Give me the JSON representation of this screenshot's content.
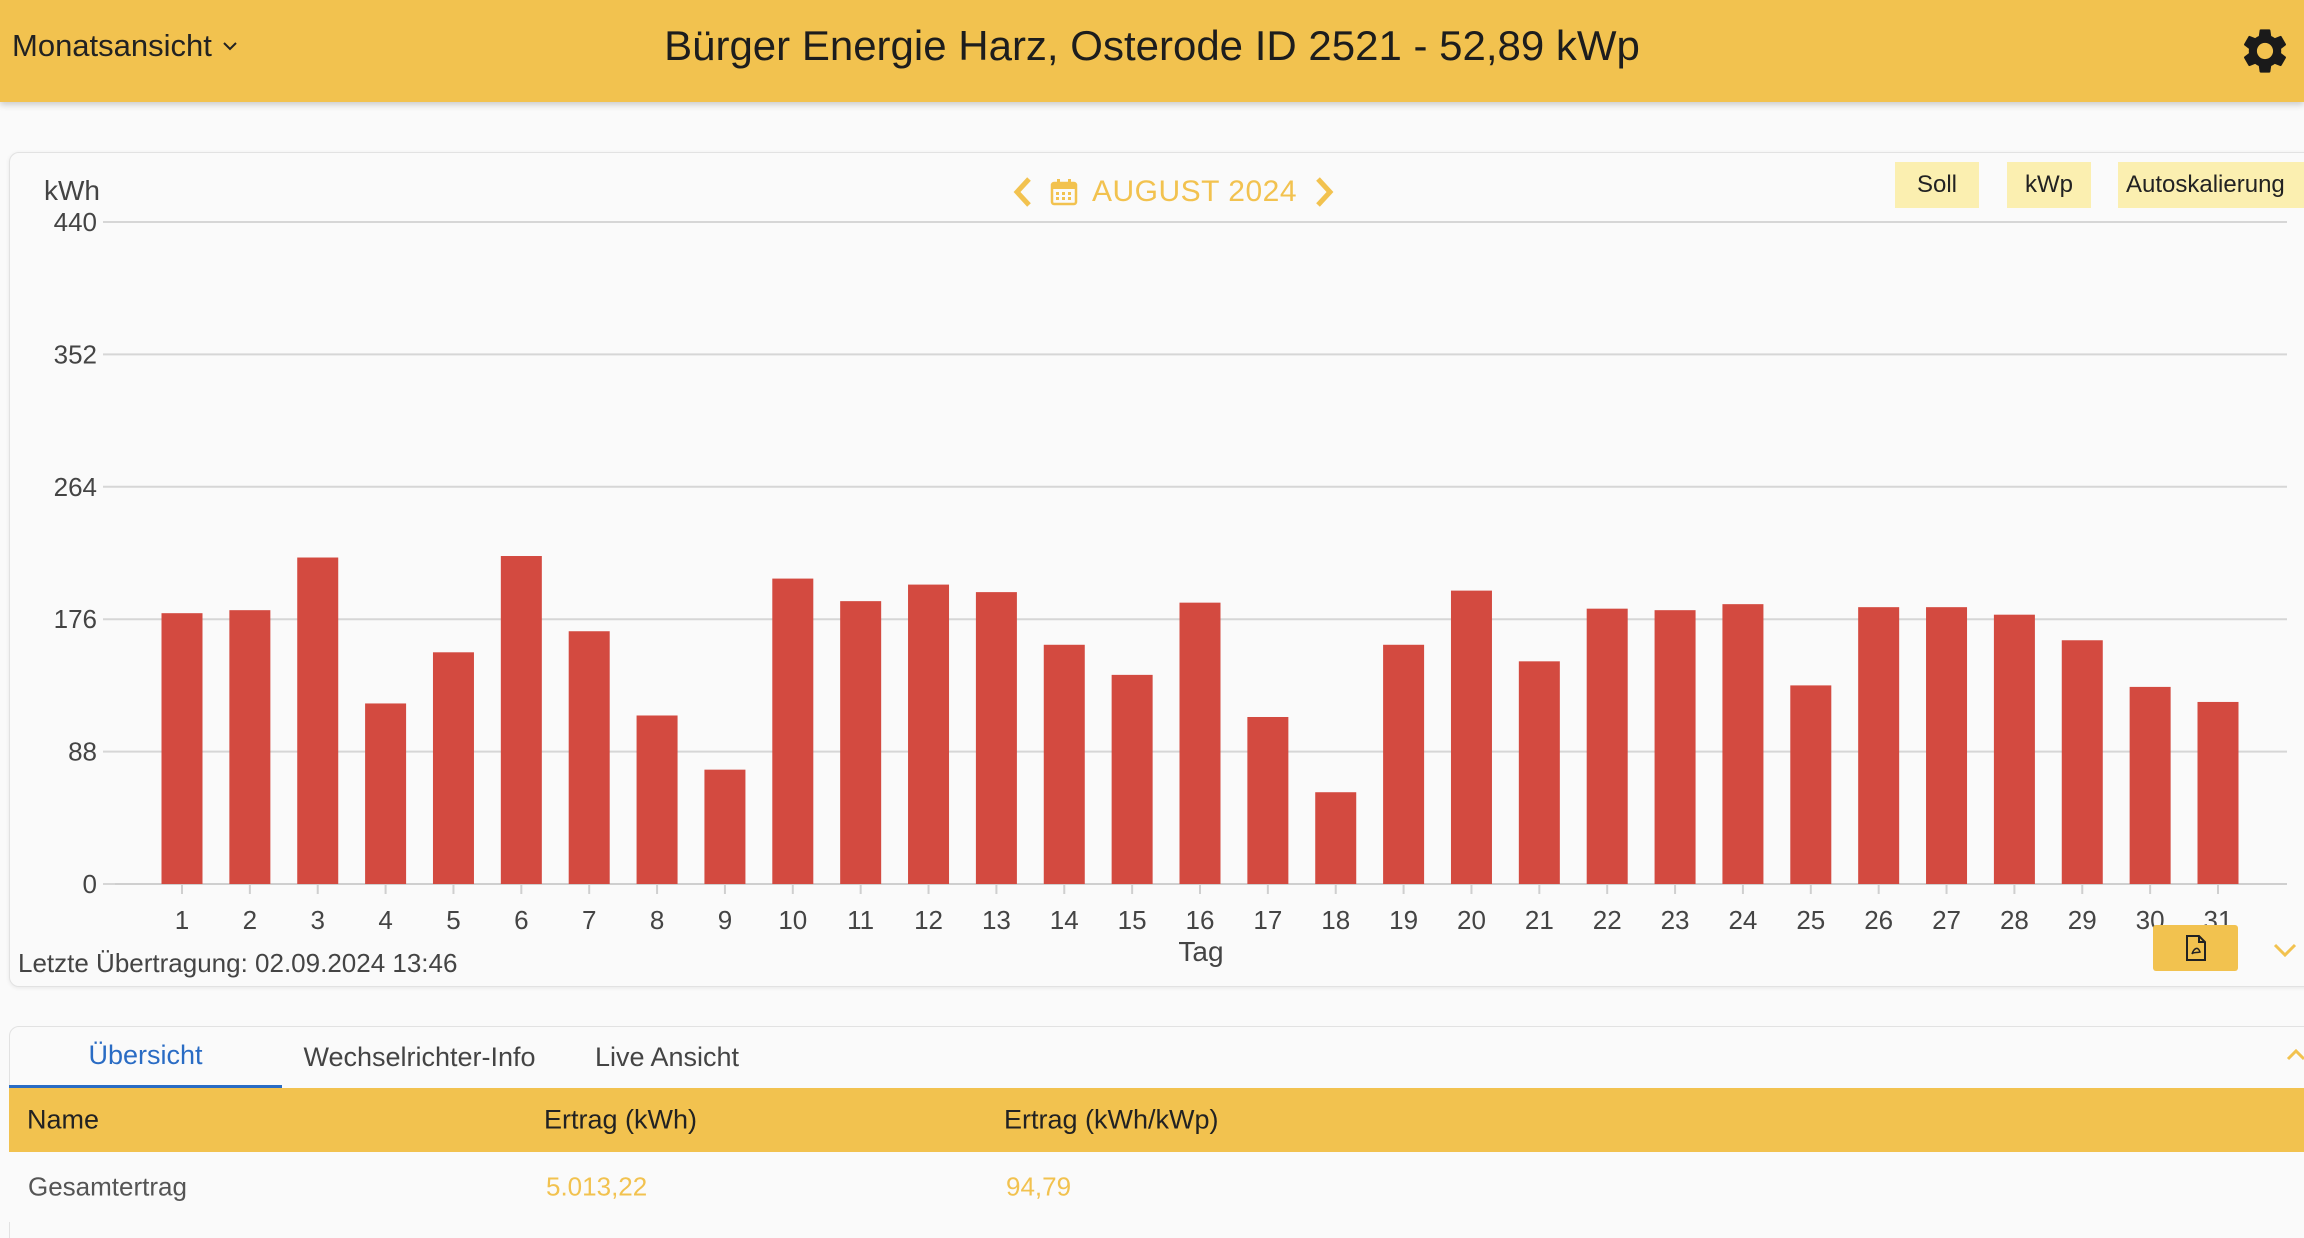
{
  "header": {
    "view_label": "Monatsansicht",
    "title": "Bürger Energie Harz, Osterode ID 2521 - 52,89 kWp"
  },
  "chart_nav": {
    "month_label": "AUGUST 2024"
  },
  "toggles": {
    "soll": "Soll",
    "kwp": "kWp",
    "autoscale": "Autoskalierung"
  },
  "colors": {
    "accent": "#f2c24f",
    "bar": "#d34a40",
    "active_tab": "#2a6cc4"
  },
  "chart_data": {
    "type": "bar",
    "title": "",
    "xlabel": "Tag",
    "ylabel": "kWh",
    "ylim": [
      0,
      440
    ],
    "yticks": [
      "0",
      "88",
      "176",
      "264",
      "352",
      "440"
    ],
    "categories": [
      "1",
      "2",
      "3",
      "4",
      "5",
      "6",
      "7",
      "8",
      "9",
      "10",
      "11",
      "12",
      "13",
      "14",
      "15",
      "16",
      "17",
      "18",
      "19",
      "20",
      "21",
      "22",
      "23",
      "24",
      "25",
      "26",
      "27",
      "28",
      "29",
      "30",
      "31"
    ],
    "values": [
      180,
      182,
      217,
      120,
      154,
      218,
      168,
      112,
      76,
      203,
      188,
      199,
      194,
      159,
      139,
      187,
      111,
      61,
      159,
      195,
      148,
      183,
      182,
      186,
      132,
      184,
      184,
      179,
      162,
      131,
      121
    ],
    "grid": true,
    "legend": "none"
  },
  "footer": {
    "last_transmission": "Letzte Übertragung: 02.09.2024 13:46"
  },
  "tabs": [
    {
      "label": "Übersicht"
    },
    {
      "label": "Wechselrichter-Info"
    },
    {
      "label": "Live Ansicht"
    }
  ],
  "table": {
    "headers": [
      "Name",
      "Ertrag (kWh)",
      "Ertrag (kWh/kWp)"
    ],
    "rows": [
      {
        "name": "Gesamtertrag",
        "kwh": "5.013,22",
        "kwh_kwp": "94,79"
      }
    ]
  }
}
